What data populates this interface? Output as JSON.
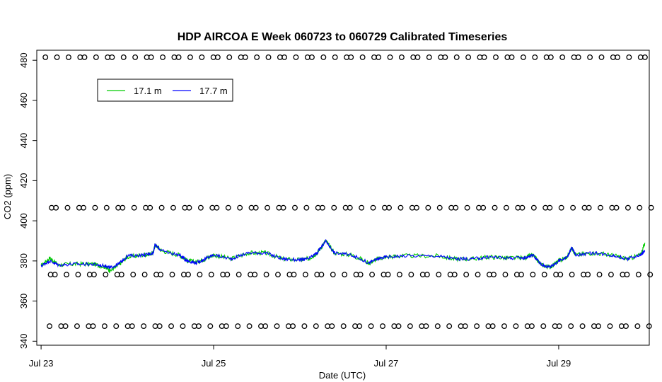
{
  "chart_data": {
    "type": "line",
    "title": "HDP AIRCOA E  Week 060723 to 060729  Calibrated Timeseries",
    "xlabel": "Date (UTC)",
    "ylabel": "CO2 (ppm)",
    "x_domain_days": [
      22.95,
      30.05
    ],
    "xticks": [
      {
        "day": 23,
        "label": "Jul 23"
      },
      {
        "day": 25,
        "label": "Jul 25"
      },
      {
        "day": 27,
        "label": "Jul 27"
      },
      {
        "day": 29,
        "label": "Jul 29"
      }
    ],
    "ylim": [
      338,
      485
    ],
    "yticks": [
      340,
      360,
      380,
      400,
      420,
      440,
      460,
      480
    ],
    "legend": {
      "placement": "top-left",
      "entries": [
        {
          "name": "17.1 m",
          "color": "#00cc00"
        },
        {
          "name": "17.7 m",
          "color": "#0000ff"
        }
      ]
    },
    "series": [
      {
        "name": "17.1 m",
        "color": "#00cc00",
        "points": [
          [
            23.0,
            377.5
          ],
          [
            23.1,
            381.5
          ],
          [
            23.2,
            378
          ],
          [
            23.4,
            378.5
          ],
          [
            23.6,
            378.5
          ],
          [
            23.75,
            377
          ],
          [
            23.8,
            375
          ],
          [
            23.9,
            378
          ],
          [
            24.0,
            382
          ],
          [
            24.2,
            383
          ],
          [
            24.3,
            384
          ],
          [
            24.32,
            388
          ],
          [
            24.4,
            385
          ],
          [
            24.6,
            383
          ],
          [
            24.7,
            380
          ],
          [
            24.8,
            379.5
          ],
          [
            24.9,
            381
          ],
          [
            25.0,
            383
          ],
          [
            25.2,
            381
          ],
          [
            25.4,
            384
          ],
          [
            25.6,
            384
          ],
          [
            25.8,
            381
          ],
          [
            26.0,
            380.5
          ],
          [
            26.1,
            381
          ],
          [
            26.2,
            384
          ],
          [
            26.3,
            390
          ],
          [
            26.4,
            384
          ],
          [
            26.6,
            383
          ],
          [
            26.8,
            379
          ],
          [
            26.9,
            381
          ],
          [
            27.0,
            382
          ],
          [
            27.2,
            382.5
          ],
          [
            27.6,
            382.5
          ],
          [
            27.8,
            381
          ],
          [
            28.0,
            381
          ],
          [
            28.2,
            382
          ],
          [
            28.4,
            381.5
          ],
          [
            28.6,
            381.5
          ],
          [
            28.7,
            383
          ],
          [
            28.8,
            378
          ],
          [
            28.9,
            377
          ],
          [
            29.0,
            380
          ],
          [
            29.1,
            382
          ],
          [
            29.15,
            386.5
          ],
          [
            29.2,
            383
          ],
          [
            29.4,
            384
          ],
          [
            29.6,
            383
          ],
          [
            29.8,
            381
          ],
          [
            29.95,
            383
          ],
          [
            30.0,
            389
          ]
        ]
      },
      {
        "name": "17.7 m",
        "color": "#0000ff",
        "points": [
          [
            23.0,
            377.5
          ],
          [
            23.1,
            380
          ],
          [
            23.2,
            378
          ],
          [
            23.4,
            378.5
          ],
          [
            23.6,
            378.3
          ],
          [
            23.75,
            377.5
          ],
          [
            23.8,
            376.5
          ],
          [
            23.9,
            378.5
          ],
          [
            24.0,
            382.5
          ],
          [
            24.2,
            383
          ],
          [
            24.3,
            384
          ],
          [
            24.32,
            388
          ],
          [
            24.4,
            385
          ],
          [
            24.6,
            383
          ],
          [
            24.7,
            380
          ],
          [
            24.8,
            379
          ],
          [
            24.9,
            381
          ],
          [
            25.0,
            383
          ],
          [
            25.2,
            381
          ],
          [
            25.4,
            384
          ],
          [
            25.6,
            384
          ],
          [
            25.8,
            381
          ],
          [
            26.0,
            380.5
          ],
          [
            26.1,
            381
          ],
          [
            26.2,
            384
          ],
          [
            26.3,
            390
          ],
          [
            26.4,
            384
          ],
          [
            26.6,
            383
          ],
          [
            26.8,
            379
          ],
          [
            26.9,
            381
          ],
          [
            27.0,
            382
          ],
          [
            27.2,
            382.5
          ],
          [
            27.6,
            382.5
          ],
          [
            27.8,
            381
          ],
          [
            28.0,
            381
          ],
          [
            28.2,
            382
          ],
          [
            28.4,
            381.5
          ],
          [
            28.6,
            381.5
          ],
          [
            28.7,
            383
          ],
          [
            28.8,
            378
          ],
          [
            28.9,
            377
          ],
          [
            29.0,
            380
          ],
          [
            29.1,
            382
          ],
          [
            29.15,
            386.5
          ],
          [
            29.2,
            383
          ],
          [
            29.4,
            384
          ],
          [
            29.6,
            383
          ],
          [
            29.8,
            381
          ],
          [
            29.95,
            383
          ],
          [
            30.0,
            385
          ]
        ]
      },
      {
        "name": "",
        "style": "points",
        "y_levels": [
          481.5,
          406.5,
          373.2,
          347.5
        ],
        "x_range": [
          23.05,
          30.0
        ]
      }
    ]
  }
}
